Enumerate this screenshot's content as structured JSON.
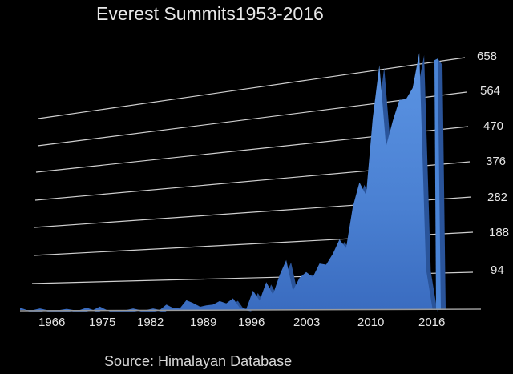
{
  "chart": {
    "title": "Everest Summits1953-2016",
    "source": "Source: Himalayan Database",
    "y_ticks": [
      "658",
      "564",
      "470",
      "376",
      "282",
      "188",
      "94"
    ],
    "x_ticks": [
      "1966",
      "1975",
      "1982",
      "1989",
      "1996",
      "2003",
      "2010",
      "2016"
    ],
    "colors": {
      "background": "#000000",
      "area": "#4a84d6",
      "area_dark": "#2c5ea8",
      "grid": "#d0d0d0",
      "text": "#e6e6e6"
    }
  },
  "chart_data": {
    "type": "area",
    "title": "Everest Summits1953-2016",
    "xlabel": "",
    "ylabel": "",
    "source": "Himalayan Database",
    "ylim": [
      0,
      700
    ],
    "y_ticks": [
      94,
      188,
      282,
      376,
      470,
      564,
      658
    ],
    "x_ticks": [
      1966,
      1975,
      1982,
      1989,
      1996,
      2003,
      2010,
      2016
    ],
    "grid": true,
    "x": [
      1953,
      1954,
      1955,
      1956,
      1957,
      1958,
      1959,
      1960,
      1961,
      1962,
      1963,
      1964,
      1965,
      1966,
      1967,
      1968,
      1969,
      1970,
      1971,
      1972,
      1973,
      1974,
      1975,
      1976,
      1977,
      1978,
      1979,
      1980,
      1981,
      1982,
      1983,
      1984,
      1985,
      1986,
      1987,
      1988,
      1989,
      1990,
      1991,
      1992,
      1993,
      1994,
      1995,
      1996,
      1997,
      1998,
      1999,
      2000,
      2001,
      2002,
      2003,
      2004,
      2005,
      2006,
      2007,
      2008,
      2009,
      2010,
      2011,
      2012,
      2013,
      2014,
      2015,
      2016
    ],
    "values": [
      6,
      0,
      0,
      4,
      0,
      0,
      0,
      3,
      0,
      0,
      6,
      0,
      9,
      0,
      0,
      0,
      0,
      4,
      0,
      0,
      4,
      0,
      14,
      5,
      4,
      25,
      18,
      8,
      12,
      14,
      23,
      17,
      30,
      6,
      3,
      50,
      24,
      72,
      40,
      90,
      129,
      50,
      83,
      98,
      85,
      120,
      117,
      145,
      182,
      160,
      266,
      330,
      297,
      496,
      633,
      423,
      488,
      543,
      545,
      574,
      665,
      106,
      1,
      650
    ]
  }
}
